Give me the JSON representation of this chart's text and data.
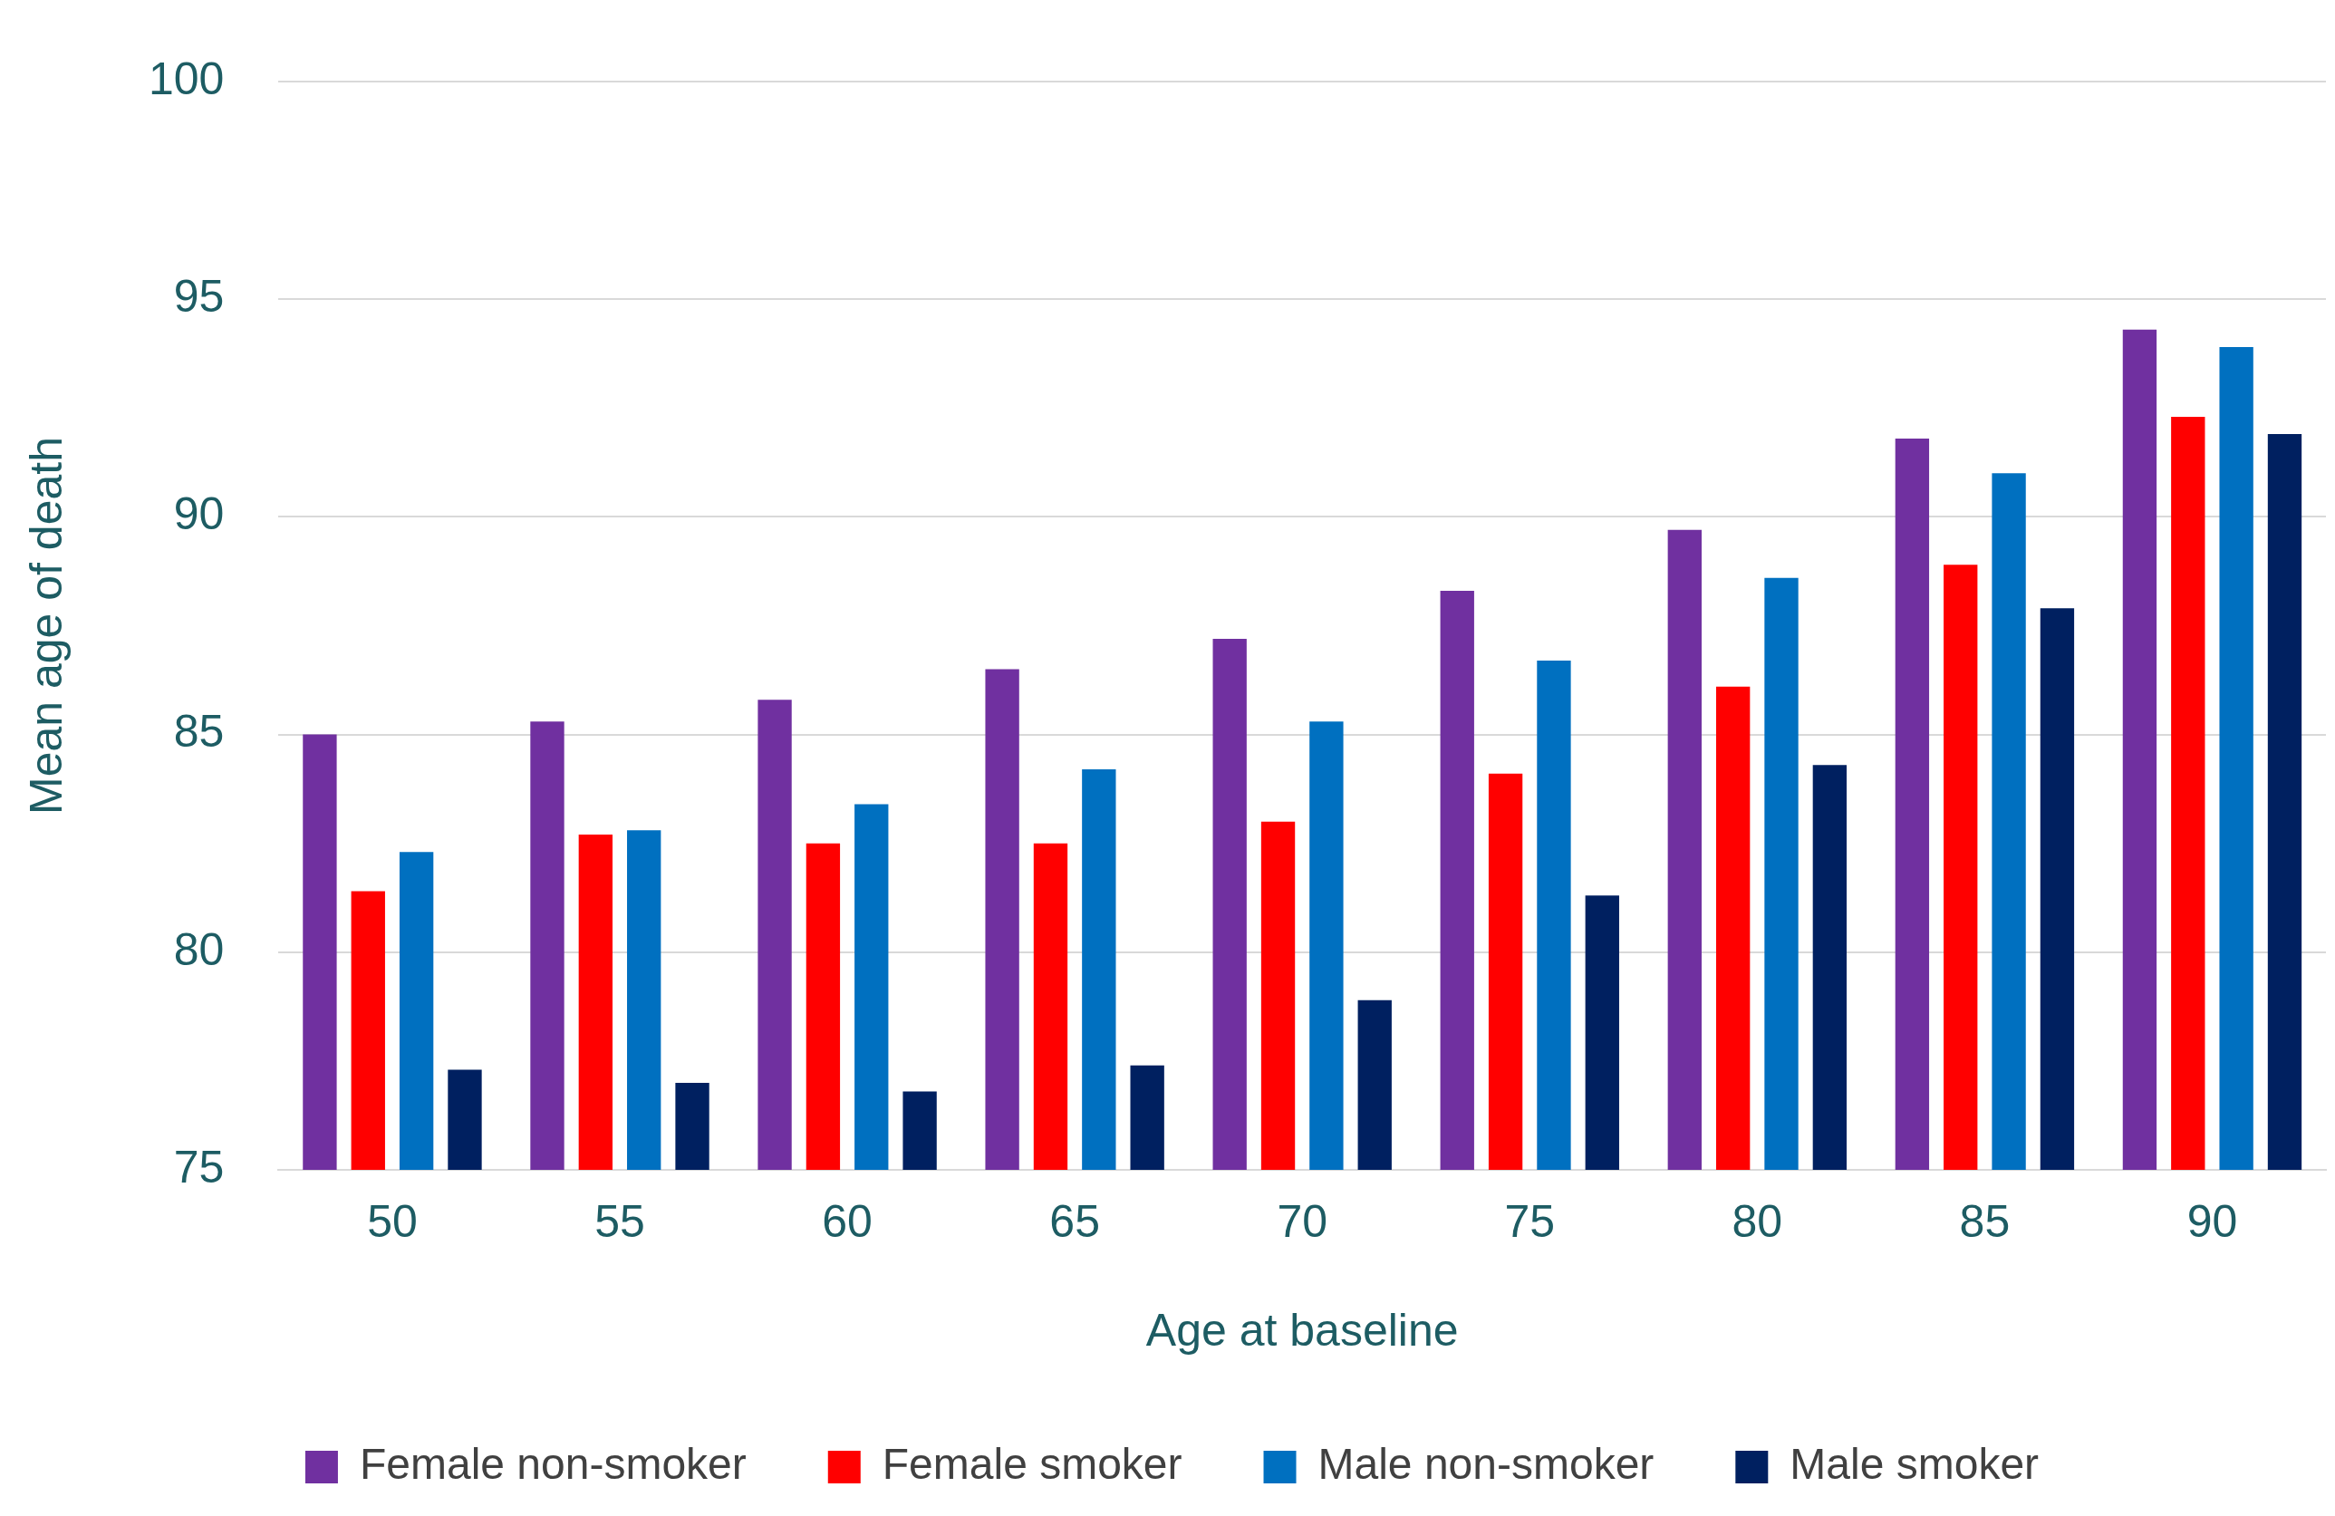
{
  "chart_data": {
    "type": "bar",
    "xlabel": "Age at baseline",
    "ylabel": "Mean age of death",
    "categories": [
      "50",
      "55",
      "60",
      "65",
      "70",
      "75",
      "80",
      "85",
      "90"
    ],
    "series": [
      {
        "name": "Female non-smoker",
        "color": "#7030a0",
        "values": [
          85.0,
          85.3,
          85.8,
          86.5,
          87.2,
          88.3,
          89.7,
          91.8,
          94.3
        ]
      },
      {
        "name": "Female smoker",
        "color": "#ff0000",
        "values": [
          81.4,
          82.7,
          82.5,
          82.5,
          83.0,
          84.1,
          86.1,
          88.9,
          92.3
        ]
      },
      {
        "name": "Male non-smoker",
        "color": "#0070c0",
        "values": [
          82.3,
          82.8,
          83.4,
          84.2,
          85.3,
          86.7,
          88.6,
          91.0,
          93.9
        ]
      },
      {
        "name": "Male smoker",
        "color": "#002060",
        "values": [
          77.3,
          77.0,
          76.8,
          77.4,
          78.9,
          81.3,
          84.3,
          87.9,
          91.9
        ]
      }
    ],
    "ylim": [
      75,
      100
    ],
    "yticks": [
      75,
      80,
      85,
      90,
      95,
      100
    ],
    "grid": "y",
    "legend": "bottom"
  }
}
